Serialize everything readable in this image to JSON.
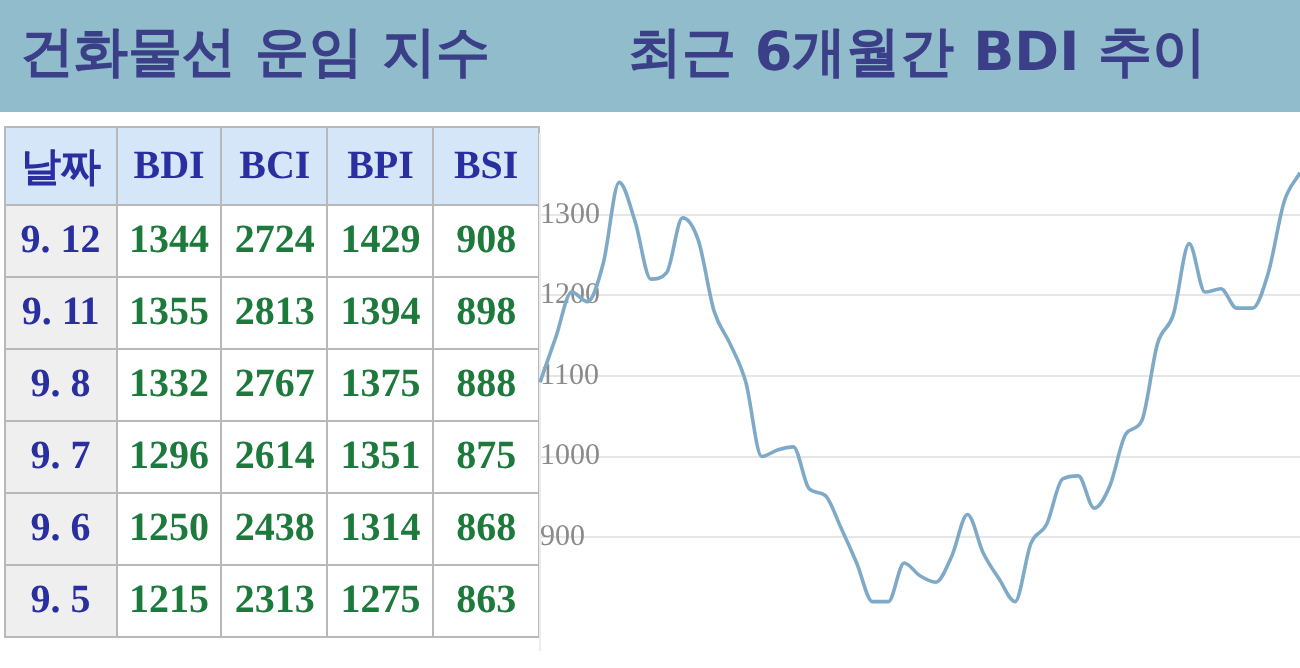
{
  "chart_data": [
    {
      "type": "other",
      "title": "건화물선 운임 지수",
      "ylabel": "날짜",
      "data_labels": true,
      "categories": [
        "9. 12",
        "9. 11",
        "9. 8",
        "9. 7",
        "9. 6",
        "9. 5"
      ],
      "series": [
        {
          "name": "BDI",
          "values": [
            1344,
            1355,
            1332,
            1296,
            1250,
            1215
          ]
        },
        {
          "name": "BCI",
          "values": [
            2724,
            2813,
            2767,
            2614,
            2438,
            2313
          ]
        },
        {
          "name": "BPI",
          "values": [
            1429,
            1394,
            1375,
            1351,
            1314,
            1275
          ]
        },
        {
          "name": "BSI",
          "values": [
            908,
            898,
            888,
            875,
            868,
            863
          ]
        }
      ]
    },
    {
      "type": "line",
      "title": "최근 6개월간 BDI 추이",
      "color": "#7eaac8",
      "marker": "none",
      "grid": "y",
      "ylim": [
        760,
        1400
      ],
      "yticks": [
        900,
        1000,
        1100,
        1200,
        1300
      ],
      "categories": [
        null,
        null,
        null,
        null,
        null,
        null,
        null,
        null,
        null,
        null,
        null,
        null,
        null,
        null,
        null,
        null,
        null,
        null,
        null,
        null,
        null,
        null,
        null,
        null,
        null,
        null,
        null,
        null,
        null,
        null,
        null,
        null,
        null,
        null,
        null,
        null,
        null,
        null,
        null,
        null,
        null,
        null,
        null,
        null,
        null,
        null,
        null,
        null,
        null
      ],
      "values": [
        1092,
        1148,
        1204,
        1192,
        1240,
        1340,
        1292,
        1220,
        1228,
        1296,
        1268,
        1180,
        1140,
        1092,
        1000,
        1008,
        1012,
        960,
        952,
        912,
        868,
        820,
        820,
        868,
        852,
        844,
        876,
        928,
        880,
        848,
        820,
        892,
        916,
        972,
        976,
        936,
        964,
        1028,
        1044,
        1140,
        1176,
        1264,
        1204,
        1208,
        1184,
        1184,
        1228,
        1316,
        1352
      ]
    }
  ]
}
